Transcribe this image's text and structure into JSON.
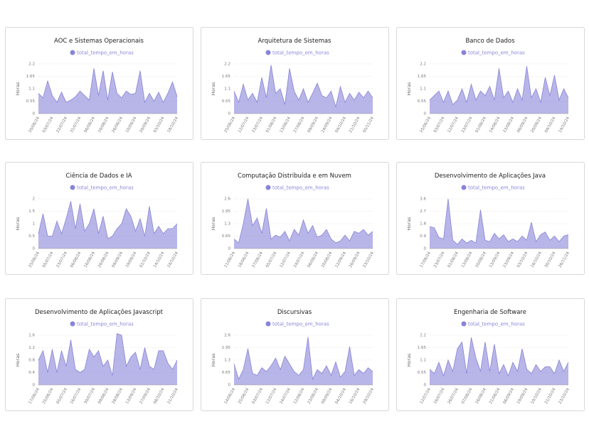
{
  "chart_data": [
    {
      "type": "area",
      "title": "AOC e Sistemas Operacionais",
      "ylabel": "Horas",
      "ylim": [
        0,
        2.2
      ],
      "yticks": [
        0,
        0.55,
        1.1,
        1.65,
        2.2
      ],
      "grid": true,
      "categories": [
        "20/06/24",
        null,
        null,
        "03/07/24",
        null,
        null,
        "22/07/24",
        null,
        null,
        "31/07/24",
        null,
        null,
        "06/08/24",
        null,
        null,
        "16/08/24",
        null,
        null,
        "26/08/24",
        null,
        null,
        "10/09/24",
        null,
        null,
        "20/09/24",
        null,
        null,
        "03/10/24",
        null,
        null,
        "18/10/24"
      ],
      "series": [
        {
          "name": "total_tempo_em_horas",
          "color": "#8884d8",
          "values": [
            0.9,
            0.7,
            1.45,
            0.8,
            0.5,
            0.95,
            0.5,
            0.6,
            0.75,
            1.0,
            0.8,
            0.6,
            2.0,
            0.8,
            1.9,
            0.6,
            1.85,
            0.9,
            0.7,
            1.0,
            0.85,
            0.9,
            1.9,
            0.5,
            0.9,
            0.55,
            0.95,
            0.5,
            0.9,
            1.4,
            0.75
          ]
        }
      ]
    },
    {
      "type": "area",
      "title": "Arquitetura de Sistemas",
      "ylabel": "Horas",
      "ylim": [
        0,
        2.2
      ],
      "yticks": [
        0,
        0.55,
        1.1,
        1.65,
        2.2
      ],
      "grid": true,
      "categories": [
        "25/06/24",
        null,
        null,
        "12/07/24",
        null,
        null,
        "23/07/24",
        null,
        null,
        "01/08/24",
        null,
        null,
        "13/08/24",
        null,
        null,
        "27/08/24",
        null,
        null,
        "09/09/24",
        null,
        null,
        "24/09/24",
        null,
        null,
        "04/10/24",
        null,
        null,
        "21/10/24",
        null,
        null,
        "05/11/24"
      ],
      "series": [
        {
          "name": "total_tempo_em_horas",
          "color": "#8884d8",
          "values": [
            1.0,
            0.5,
            1.3,
            0.6,
            0.9,
            0.5,
            1.6,
            0.7,
            2.15,
            0.9,
            1.1,
            0.4,
            2.0,
            1.0,
            0.6,
            1.1,
            0.5,
            0.9,
            1.35,
            0.8,
            0.7,
            1.0,
            0.3,
            1.2,
            0.5,
            0.9,
            0.6,
            0.95,
            0.7,
            1.0,
            0.7
          ]
        }
      ]
    },
    {
      "type": "area",
      "title": "Banco de Dados",
      "ylabel": "Horas",
      "ylim": [
        0,
        2.2
      ],
      "yticks": [
        0,
        0.55,
        1.1,
        1.65,
        2.2
      ],
      "grid": true,
      "categories": [
        "25/06/24",
        null,
        null,
        "03/07/24",
        null,
        null,
        "12/07/24",
        null,
        null,
        "23/07/24",
        null,
        null,
        "01/08/24",
        null,
        null,
        "14/08/24",
        null,
        null,
        "23/08/24",
        null,
        null,
        "06/09/24",
        null,
        null,
        "20/09/24",
        null,
        null,
        "04/10/24",
        null,
        null,
        "14/10/24"
      ],
      "series": [
        {
          "name": "total_tempo_em_horas",
          "color": "#8884d8",
          "values": [
            0.6,
            0.8,
            1.0,
            0.5,
            1.0,
            0.4,
            0.6,
            1.1,
            0.5,
            1.3,
            0.6,
            1.0,
            0.8,
            1.2,
            0.6,
            2.0,
            0.7,
            1.0,
            0.5,
            1.1,
            0.6,
            2.1,
            0.7,
            1.1,
            0.5,
            1.6,
            0.8,
            1.7,
            0.6,
            1.1,
            0.7
          ]
        }
      ]
    },
    {
      "type": "area",
      "title": "Ciência de Dados e IA",
      "ylabel": "Horas",
      "ylim": [
        0,
        2
      ],
      "yticks": [
        0,
        0.5,
        1,
        1.5,
        2
      ],
      "grid": true,
      "categories": [
        "25/06/24",
        null,
        null,
        "05/07/24",
        null,
        null,
        "23/07/24",
        null,
        null,
        "06/08/24",
        null,
        null,
        "16/08/24",
        null,
        null,
        "26/08/24",
        null,
        null,
        "09/09/24",
        null,
        null,
        "19/09/24",
        null,
        null,
        "01/10/24",
        null,
        null,
        "14/10/24",
        null,
        null,
        "24/10/24"
      ],
      "series": [
        {
          "name": "total_tempo_em_horas",
          "color": "#8884d8",
          "values": [
            0.6,
            1.4,
            0.5,
            0.5,
            1.1,
            0.6,
            1.2,
            1.9,
            0.8,
            1.8,
            0.7,
            1.0,
            1.6,
            0.6,
            1.3,
            0.4,
            0.5,
            0.8,
            1.0,
            1.6,
            1.3,
            0.7,
            1.2,
            0.5,
            1.7,
            0.6,
            0.9,
            0.6,
            0.8,
            0.8,
            1.0
          ]
        }
      ]
    },
    {
      "type": "area",
      "title": "Computação Distribuída e em Nuvem",
      "ylabel": "Horas",
      "ylim": [
        0,
        2.6
      ],
      "yticks": [
        0,
        0.65,
        1.3,
        1.95,
        2.6
      ],
      "grid": true,
      "categories": [
        "11/06/24",
        null,
        null,
        "18/06/24",
        null,
        null,
        "27/06/24",
        null,
        null,
        "05/07/24",
        null,
        null,
        "12/07/24",
        null,
        null,
        "24/07/24",
        null,
        null,
        "06/08/24",
        null,
        null,
        "20/08/24",
        null,
        null,
        "12/09/24",
        null,
        null,
        "26/09/24",
        null,
        null,
        "23/10/24"
      ],
      "series": [
        {
          "name": "total_tempo_em_horas",
          "color": "#8884d8",
          "values": [
            0.5,
            0.3,
            1.3,
            2.6,
            1.2,
            1.6,
            0.8,
            2.1,
            0.5,
            0.7,
            0.6,
            0.9,
            0.4,
            1.0,
            0.7,
            1.5,
            0.8,
            1.2,
            0.6,
            0.7,
            1.0,
            0.5,
            0.3,
            0.4,
            0.7,
            0.4,
            0.9,
            0.8,
            1.0,
            0.7,
            0.9
          ]
        }
      ]
    },
    {
      "type": "area",
      "title": "Desenvolvimento de Aplicações Java",
      "ylabel": "Horas",
      "ylim": [
        0,
        3.6
      ],
      "yticks": [
        0,
        0.9,
        1.8,
        2.7,
        3.6
      ],
      "grid": true,
      "categories": [
        "17/06/24",
        null,
        null,
        "23/07/24",
        null,
        null,
        "01/08/24",
        null,
        null,
        "13/08/24",
        null,
        null,
        "20/08/24",
        null,
        null,
        "13/09/24",
        null,
        null,
        "23/09/24",
        null,
        null,
        "03/10/24",
        null,
        null,
        "16/10/24",
        null,
        null,
        "30/10/24",
        null,
        null,
        "26/11/24"
      ],
      "series": [
        {
          "name": "total_tempo_em_horas",
          "color": "#8884d8",
          "values": [
            1.6,
            1.5,
            0.8,
            0.7,
            3.6,
            0.6,
            0.3,
            0.7,
            0.4,
            0.6,
            0.4,
            2.8,
            0.6,
            0.5,
            1.1,
            0.7,
            1.0,
            0.5,
            0.7,
            0.5,
            0.9,
            0.6,
            1.9,
            0.5,
            1.0,
            1.2,
            0.6,
            0.9,
            0.5,
            0.9,
            1.0
          ]
        }
      ]
    },
    {
      "type": "area",
      "title": "Desenvolvimento de Aplicações Javascript",
      "ylabel": "Horas",
      "ylim": [
        0,
        1.6
      ],
      "yticks": [
        0,
        0.4,
        0.8,
        1.2,
        1.6
      ],
      "grid": true,
      "categories": [
        "17/06/24",
        null,
        null,
        "25/06/24",
        null,
        null,
        "05/07/24",
        null,
        null,
        "16/07/24",
        null,
        null,
        "30/07/24",
        null,
        null,
        "09/08/24",
        null,
        null,
        "28/08/24",
        null,
        null,
        "13/09/24",
        null,
        null,
        "27/09/24",
        null,
        null,
        "08/10/24",
        null,
        null,
        "21/10/24"
      ],
      "series": [
        {
          "name": "total_tempo_em_horas",
          "color": "#8884d8",
          "values": [
            0.8,
            1.1,
            0.4,
            1.15,
            0.4,
            1.1,
            0.6,
            1.45,
            0.5,
            0.4,
            0.5,
            1.15,
            0.9,
            1.1,
            0.6,
            0.8,
            0.3,
            1.65,
            1.6,
            0.6,
            0.9,
            1.05,
            0.5,
            1.2,
            0.6,
            0.5,
            1.1,
            1.1,
            0.7,
            0.5,
            0.8
          ]
        }
      ]
    },
    {
      "type": "area",
      "title": "Discursivas",
      "ylabel": "Horas",
      "ylim": [
        0,
        2.6
      ],
      "yticks": [
        0,
        0.65,
        1.3,
        1.95,
        2.6
      ],
      "grid": true,
      "categories": [
        "14/06/24",
        null,
        null,
        "25/06/24",
        null,
        null,
        "03/07/24",
        null,
        null,
        "12/07/24",
        null,
        null,
        "24/07/24",
        null,
        null,
        "12/08/24",
        null,
        null,
        "23/08/24",
        null,
        null,
        "09/09/24",
        null,
        null,
        "04/10/24",
        null,
        null,
        "16/10/24",
        null,
        null,
        "29/10/24"
      ],
      "series": [
        {
          "name": "total_tempo_em_horas",
          "color": "#8884d8",
          "values": [
            1.1,
            0.3,
            0.8,
            1.9,
            0.6,
            0.5,
            0.9,
            0.7,
            1.0,
            1.4,
            0.8,
            1.5,
            1.1,
            0.7,
            0.5,
            0.8,
            2.5,
            0.3,
            0.8,
            0.6,
            1.0,
            0.5,
            1.2,
            0.4,
            0.7,
            2.0,
            0.5,
            0.8,
            0.6,
            0.9,
            0.7
          ]
        }
      ]
    },
    {
      "type": "area",
      "title": "Engenharia de Software",
      "ylabel": "Horas",
      "ylim": [
        0,
        2.2
      ],
      "yticks": [
        0,
        0.55,
        1.1,
        1.65,
        2.2
      ],
      "grid": true,
      "categories": [
        "12/07/24",
        null,
        null,
        "16/07/24",
        null,
        null,
        "26/07/24",
        null,
        null,
        "07/08/24",
        null,
        null,
        "16/08/24",
        null,
        null,
        "21/08/24",
        null,
        null,
        "06/09/24",
        null,
        null,
        "19/09/24",
        null,
        null,
        "10/10/24",
        null,
        null,
        "21/10/24",
        null,
        null,
        "23/10/24"
      ],
      "series": [
        {
          "name": "total_tempo_em_horas",
          "color": "#8884d8",
          "values": [
            0.7,
            0.5,
            1.0,
            0.4,
            1.1,
            0.6,
            1.6,
            1.9,
            0.5,
            2.1,
            1.2,
            0.6,
            1.9,
            0.6,
            1.8,
            0.5,
            0.9,
            0.4,
            1.0,
            0.6,
            1.6,
            0.7,
            0.5,
            0.9,
            0.6,
            0.8,
            0.8,
            0.5,
            1.1,
            0.6,
            1.0
          ]
        }
      ]
    }
  ]
}
